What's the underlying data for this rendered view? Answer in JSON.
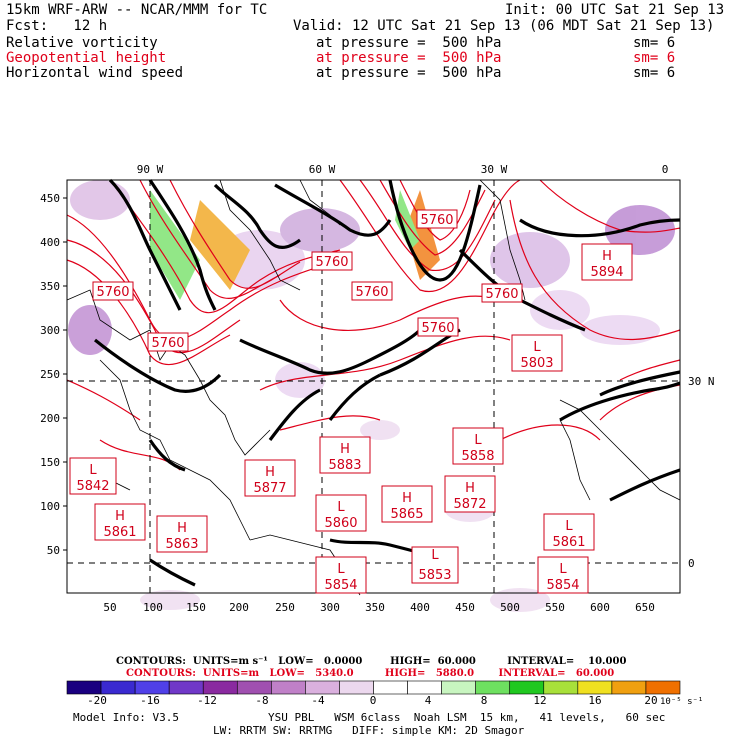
{
  "header": {
    "model": "15km WRF-ARW -- NCAR/MMM for TC",
    "init": "Init: 00 UTC Sat 21 Sep 13",
    "fcst": "Fcst:   12 h",
    "valid": "Valid: 12 UTC Sat 21 Sep 13 (06 MDT Sat 21 Sep 13)",
    "fields": [
      {
        "name": "Relative vorticity",
        "level": "at pressure =  500 hPa",
        "sm": "sm= 6",
        "color": "#000000"
      },
      {
        "name": "Geopotential height",
        "level": "at pressure =  500 hPa",
        "sm": "sm= 6",
        "color": "#e0001a"
      },
      {
        "name": "Horizontal wind speed",
        "level": "at pressure =  500 hPa",
        "sm": "sm= 6",
        "color": "#000000"
      }
    ]
  },
  "map": {
    "lon_labels": [
      "90 W",
      "60 W",
      "30 W",
      "0"
    ],
    "lat_labels": [
      "30 N",
      "0"
    ],
    "y_ticks": [
      "450",
      "400",
      "350",
      "300",
      "250",
      "200",
      "150",
      "100",
      "50"
    ],
    "x_ticks": [
      "50",
      "100",
      "150",
      "200",
      "250",
      "300",
      "350",
      "400",
      "450",
      "500",
      "550",
      "600",
      "650"
    ],
    "pressure_systems": [
      {
        "type": "H",
        "value": "5894"
      },
      {
        "type": "L",
        "value": "5803"
      },
      {
        "type": "L",
        "value": "5858"
      },
      {
        "type": "H",
        "value": "5883"
      },
      {
        "type": "H",
        "value": "5877"
      },
      {
        "type": "H",
        "value": "5872"
      },
      {
        "type": "H",
        "value": "5865"
      },
      {
        "type": "L",
        "value": "5860"
      },
      {
        "type": "H",
        "value": "5861"
      },
      {
        "type": "H",
        "value": "5863"
      },
      {
        "type": "L",
        "value": "5842"
      },
      {
        "type": "L",
        "value": "5861"
      },
      {
        "type": "L",
        "value": "5854"
      },
      {
        "type": "L",
        "value": "5854"
      },
      {
        "type": "L",
        "value": "5853"
      }
    ],
    "contour_labels": [
      "5760",
      "5760",
      "5760",
      "5760",
      "5760",
      "5760",
      "5760"
    ]
  },
  "contours": {
    "black": "CONTOURS:  UNITS=m s⁻¹   LOW=   0.0000        HIGH=  60.000         INTERVAL=    10.000",
    "red": "CONTOURS:  UNITS=m   LOW=   5340.0         HIGH=   5880.0       INTERVAL=   60.000"
  },
  "colorbar": {
    "colors": [
      "#1a0080",
      "#3a2ad0",
      "#5040e8",
      "#7038c8",
      "#8a2aa0",
      "#a050b0",
      "#c080c8",
      "#dab0de",
      "#ecd8ee",
      "#ffffff",
      "#ffffff",
      "#c8f5c0",
      "#6ee060",
      "#20c820",
      "#a8e03a",
      "#f0e020",
      "#f0a010",
      "#f07000"
    ],
    "labels": [
      "-20",
      "-16",
      "-12",
      "-8",
      "-4",
      "0",
      "4",
      "8",
      "12",
      "16",
      "20"
    ],
    "unit": "10⁻⁵ s⁻¹"
  },
  "footer": {
    "model_info": "Model Info: V3.5",
    "line1": "YSU PBL   WSM 6class  Noah LSM  15 km,   41 levels,   60 sec",
    "line2": "LW: RRTM SW: RRTMG   DIFF: simple KM: 2D Smagor"
  }
}
